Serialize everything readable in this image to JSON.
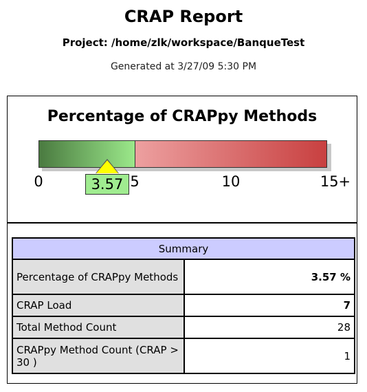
{
  "header": {
    "title": "CRAP Report",
    "project": "Project:  /home/zlk/workspace/BanqueTest",
    "generated": "Generated at 3/27/09 5:30 PM"
  },
  "gauge": {
    "title": "Percentage of CRAPpy Methods",
    "value": 3.57,
    "value_label": "3.57",
    "threshold": 5,
    "max": 15,
    "ticks": [
      {
        "value": 0,
        "label": "0"
      },
      {
        "value": 5,
        "label": "5"
      },
      {
        "value": 10,
        "label": "10"
      },
      {
        "value": 15,
        "label": "15+"
      }
    ],
    "colors": {
      "good_start": "#4a7a40",
      "good_end": "#9be88a",
      "bad_start": "#ffd0d0",
      "bad_end": "#c84040",
      "marker": "#ffff00",
      "value_box": "#a0ec90"
    }
  },
  "summary": {
    "heading": "Summary",
    "rows": [
      {
        "label": "Percentage of CRAPpy Methods",
        "value": "3.57 %"
      },
      {
        "label": "CRAP Load",
        "value": "7"
      },
      {
        "label": "Total Method Count",
        "value": "28"
      },
      {
        "label": "CRAPpy Method Count (CRAP > 30 )",
        "value": "1"
      }
    ],
    "header_color": "#ccccff",
    "label_color": "#e0e0e0"
  }
}
